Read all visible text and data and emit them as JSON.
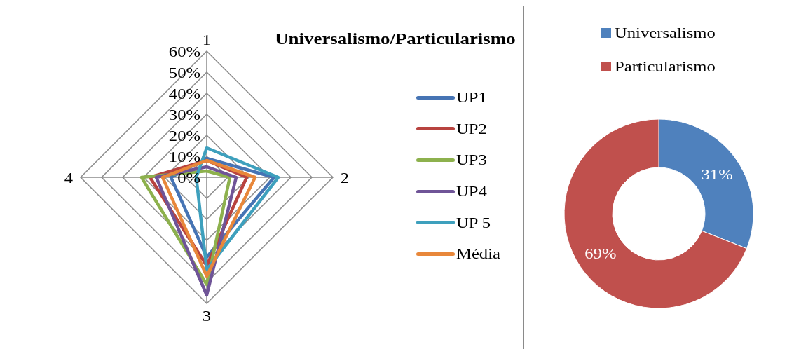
{
  "chart_data": [
    {
      "type": "radar",
      "title": "Universalismo/Particularismo",
      "categories": [
        "1",
        "2",
        "3",
        "4"
      ],
      "series": [
        {
          "name": "UP1",
          "color": "#4674b4",
          "values": [
            9,
            32,
            38,
            17
          ]
        },
        {
          "name": "UP2",
          "color": "#b8433f",
          "values": [
            8,
            19,
            42,
            27
          ]
        },
        {
          "name": "UP3",
          "color": "#8db14d",
          "values": [
            3,
            11,
            51,
            31
          ]
        },
        {
          "name": "UP4",
          "color": "#6f5497",
          "values": [
            5,
            14,
            56,
            24
          ]
        },
        {
          "name": "UP 5",
          "color": "#3ea0bd",
          "values": [
            14,
            34,
            44,
            5
          ]
        },
        {
          "name": "Média",
          "color": "#e8873a",
          "values": [
            8,
            23,
            47,
            21
          ]
        }
      ],
      "ylim": [
        0,
        60
      ],
      "yticks": [
        {
          "value": 0,
          "label": "0%"
        },
        {
          "value": 10,
          "label": "10%"
        },
        {
          "value": 20,
          "label": "20%"
        },
        {
          "value": 30,
          "label": "30%"
        },
        {
          "value": 40,
          "label": "40%"
        },
        {
          "value": 50,
          "label": "50%"
        },
        {
          "value": 60,
          "label": "60%"
        }
      ],
      "grid": true,
      "legend": "right"
    },
    {
      "type": "donut",
      "categories": [
        "Universalismo",
        "Particularismo"
      ],
      "values": [
        31,
        69
      ],
      "colors": [
        "#4f81bd",
        "#c0504d"
      ],
      "value_labels": [
        "31%",
        "69%"
      ],
      "legend": "top"
    }
  ]
}
